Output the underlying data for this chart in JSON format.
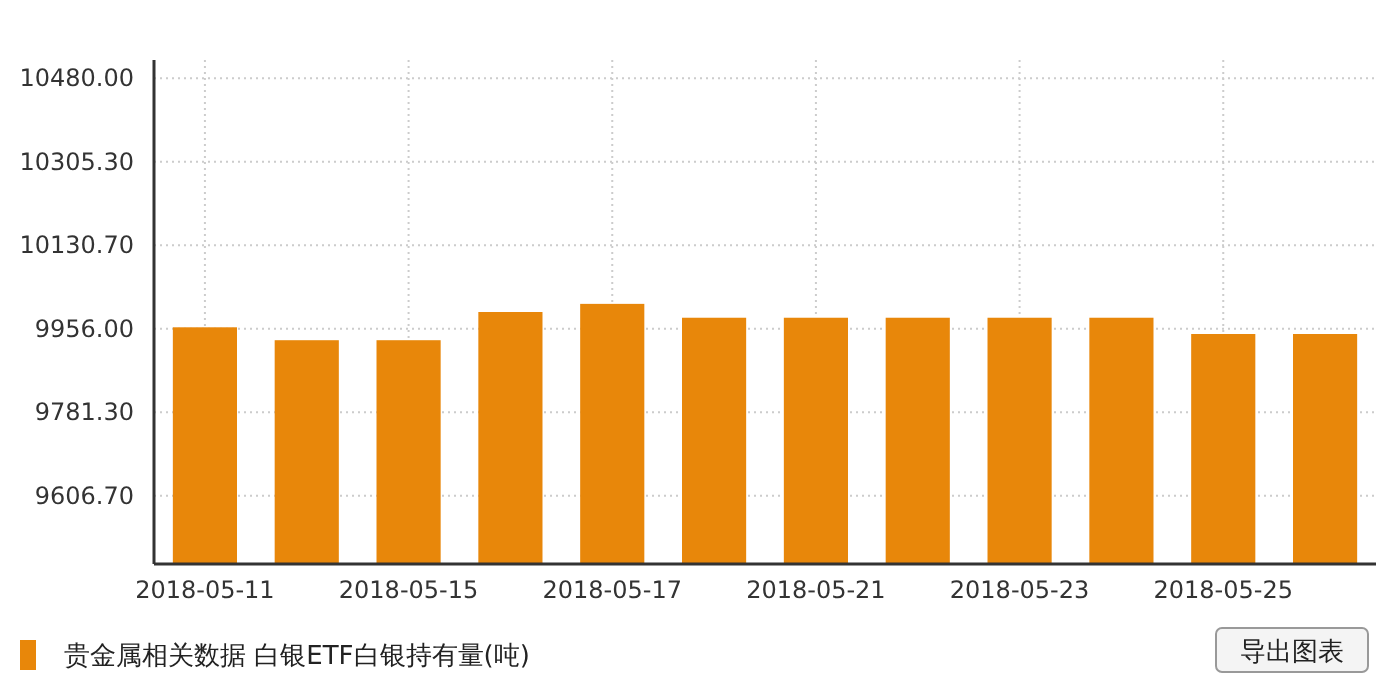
{
  "chart_data": {
    "type": "bar",
    "categories": [
      "2018-05-11",
      null,
      "2018-05-15",
      null,
      "2018-05-17",
      null,
      "2018-05-21",
      null,
      "2018-05-23",
      null,
      "2018-05-25",
      null
    ],
    "series": [
      {
        "name": "贵金属相关数据 白银ETF白银持有量(吨)",
        "color": "#e8870a",
        "values": [
          9959,
          9932,
          9932,
          9991,
          10008,
          9979,
          9979,
          9979,
          9979,
          9979,
          9945,
          9945
        ]
      }
    ],
    "ylim": [
      9464,
      10518
    ],
    "yticks": [
      {
        "value": 9606.7,
        "label": "9606.70"
      },
      {
        "value": 9781.3,
        "label": "9781.30"
      },
      {
        "value": 9956,
        "label": "9956.00"
      },
      {
        "value": 10130.7,
        "label": "10130.70"
      },
      {
        "value": 10305.3,
        "label": "10305.30"
      },
      {
        "value": 10480,
        "label": "10480.00"
      }
    ],
    "grid": true,
    "legend": "bottom",
    "annotations": [
      "导出图表"
    ]
  }
}
